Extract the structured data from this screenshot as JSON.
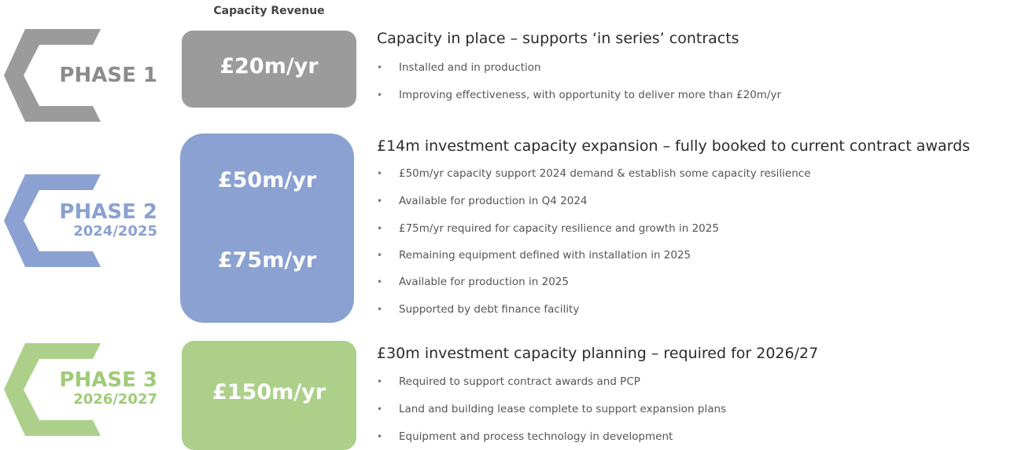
{
  "header": "Capacity Revenue",
  "phases": [
    {
      "label": "PHASE 1",
      "revenue": [
        "£20m/yr"
      ],
      "heading": "Capacity in place – supports ‘in series’ contracts",
      "bullets": [
        "Installed and in production",
        "Improving effectiveness, with opportunity to deliver more than £20m/yr"
      ]
    },
    {
      "label": "PHASE 2",
      "years": "2024/2025",
      "revenue": [
        "£50m/yr",
        "£75m/yr"
      ],
      "heading": "£14m investment capacity expansion – fully booked to current contract awards",
      "bullets": [
        "£50m/yr capacity support 2024 demand & establish some capacity resilience",
        "Available for production in Q4 2024",
        "£75m/yr required for capacity resilience and growth in 2025",
        "Remaining equipment defined with installation in 2025",
        "Available for production in 2025",
        "Supported by debt finance facility"
      ]
    },
    {
      "label": "PHASE 3",
      "years": "2026/2027",
      "revenue": [
        "£150m/yr"
      ],
      "heading": "£30m investment capacity planning – required for 2026/27",
      "bullets": [
        "Required to support contract awards and PCP",
        "Land and building lease complete to support expansion plans",
        "Equipment and process technology in development"
      ]
    }
  ]
}
